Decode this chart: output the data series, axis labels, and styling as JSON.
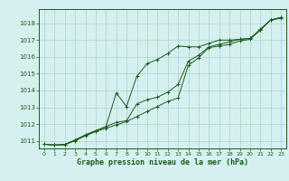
{
  "title": "Graphe pression niveau de la mer (hPa)",
  "background_color": "#d6f0f0",
  "grid_color": "#b0d8d0",
  "line_color": "#1a5c1a",
  "xlim": [
    -0.5,
    23.5
  ],
  "ylim": [
    1010.55,
    1018.85
  ],
  "yticks": [
    1011,
    1012,
    1013,
    1014,
    1015,
    1016,
    1017,
    1018
  ],
  "xticks": [
    0,
    1,
    2,
    3,
    4,
    5,
    6,
    7,
    8,
    9,
    10,
    11,
    12,
    13,
    14,
    15,
    16,
    17,
    18,
    19,
    20,
    21,
    22,
    23
  ],
  "series1": [
    1010.8,
    1010.75,
    1010.78,
    1011.0,
    1011.3,
    1011.55,
    1011.75,
    1011.95,
    1012.15,
    1012.45,
    1012.75,
    1013.05,
    1013.35,
    1013.55,
    1015.5,
    1015.95,
    1016.55,
    1016.65,
    1016.75,
    1016.95,
    1017.05,
    1017.6,
    1018.2,
    1018.3
  ],
  "series2": [
    1010.8,
    1010.75,
    1010.78,
    1011.05,
    1011.35,
    1011.6,
    1011.85,
    1012.1,
    1012.2,
    1013.2,
    1013.45,
    1013.6,
    1013.9,
    1014.35,
    1015.75,
    1016.1,
    1016.6,
    1016.75,
    1016.9,
    1017.05,
    1017.1,
    1017.65,
    1018.2,
    1018.35
  ],
  "series3": [
    1010.8,
    1010.75,
    1010.78,
    1011.05,
    1011.35,
    1011.6,
    1011.85,
    1013.85,
    1013.05,
    1014.85,
    1015.6,
    1015.85,
    1016.2,
    1016.65,
    1016.6,
    1016.6,
    1016.8,
    1017.0,
    1017.0,
    1017.05,
    1017.1,
    1017.6,
    1018.2,
    1018.35
  ]
}
